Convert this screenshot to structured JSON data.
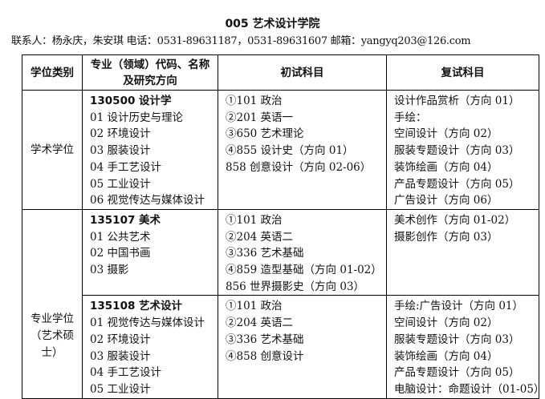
{
  "title": "005 艺术设计学院",
  "contact": "联系人：杨永庆，朱安琪  电话：0531-89631187，0531-89631607 邮箱：yangyq203@126.com",
  "headers": [
    "学位类别",
    "专业（领域）代码、名称及研究方向",
    "初试科目",
    "复试科目"
  ],
  "rows": [
    {
      "category": "学术学位",
      "major": "130500 设计学",
      "directions": [
        "01 设计历史与理论",
        "02 环境设计",
        "03 服装设计",
        "04 手工艺设计",
        "05 工业设计",
        "06 视觉传达与媒体设计"
      ],
      "exam": [
        "①101 政治",
        "②201 英语一",
        "③650 艺术理论",
        "④855 设计史（方向 01）",
        "858 创意设计（方向 02-06）"
      ],
      "retest": [
        "设计作品赏析（方向 01）",
        "手绘：",
        "空间设计（方向 02）",
        "服装专题设计（方向 03）",
        "装饰绘画（方向 04）",
        "产品专题设计（方向 05）",
        "广告设计（方向 06）"
      ]
    },
    {
      "category": "专业学位（艺术硕士）",
      "major": "135107 美术",
      "directions": [
        "01 公共艺术",
        "02 中国书画",
        "03 摄影"
      ],
      "exam": [
        "①101 政治",
        "②204 英语二",
        "③336 艺术基础",
        "④859 造型基础（方向 01-02）",
        "856 世界摄影史（方向 03）"
      ],
      "retest": [
        "美术创作（方向 01-02）",
        "摄影创作（方向 03）"
      ]
    },
    {
      "major": "135108 艺术设计",
      "directions": [
        "01 视觉传达与媒体设计",
        "02 环境设计",
        "03 服装设计",
        "04 手工艺设计",
        "05 工业设计"
      ],
      "exam": [
        "①101 政治",
        "②204 英语二",
        "③336 艺术基础",
        "④858 创意设计"
      ],
      "retest": [
        "手绘:广告设计（方向 01）",
        "空间设计（方向 02）",
        "服装专题设计（方向 03）",
        "装饰绘画（方向 04）",
        "产品专题设计（方向 05）",
        "电脑设计：命题设计（01-05）"
      ]
    }
  ]
}
